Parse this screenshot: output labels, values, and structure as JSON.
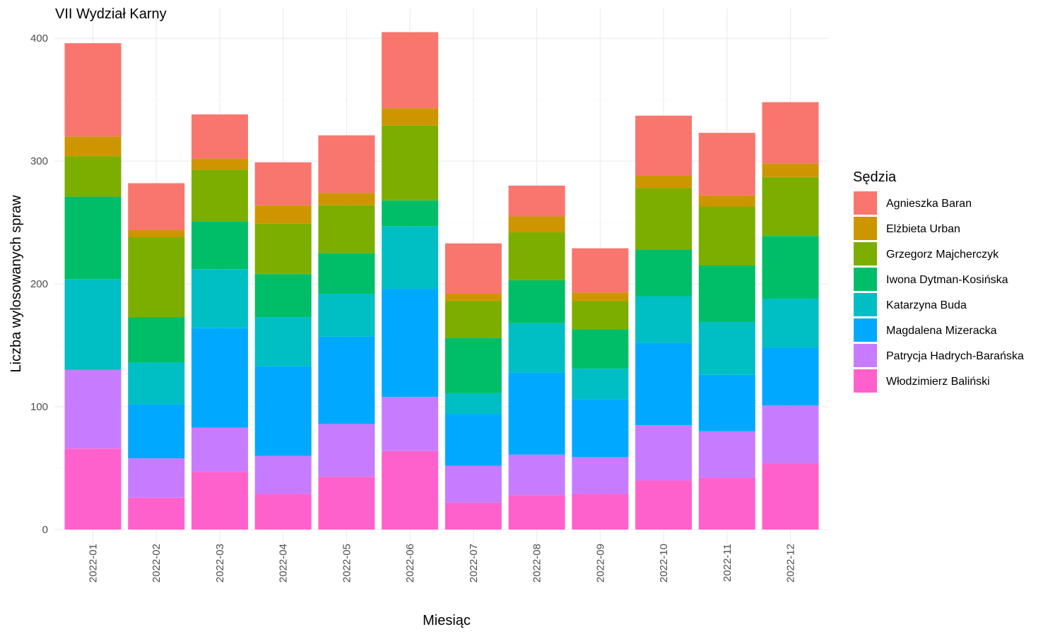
{
  "chart_data": {
    "type": "bar",
    "stacked": true,
    "title": "VII Wydział Karny",
    "xlabel": "Miesiąc",
    "ylabel": "Liczba wylosowanych spraw",
    "ylim": [
      0,
      420
    ],
    "yticks": [
      0,
      100,
      200,
      300,
      400
    ],
    "grid": true,
    "legend_title": "Sędzia",
    "legend_position": "right",
    "categories": [
      "2022-01",
      "2022-02",
      "2022-03",
      "2022-04",
      "2022-05",
      "2022-06",
      "2022-07",
      "2022-08",
      "2022-09",
      "2022-10",
      "2022-11",
      "2022-12"
    ],
    "series": [
      {
        "name": "Agnieszka Baran",
        "color": "#F8766D",
        "values": [
          76,
          38,
          36,
          35,
          47,
          62,
          41,
          25,
          36,
          49,
          51,
          50
        ]
      },
      {
        "name": "Elżbieta Urban",
        "color": "#CD9600",
        "values": [
          16,
          6,
          9,
          15,
          10,
          14,
          6,
          13,
          7,
          10,
          9,
          11
        ]
      },
      {
        "name": "Grzegorz Majcherczyk",
        "color": "#7CAE00",
        "values": [
          33,
          65,
          42,
          41,
          39,
          61,
          30,
          39,
          23,
          50,
          48,
          48
        ]
      },
      {
        "name": "Iwona Dytman-Kosińska",
        "color": "#00BE67",
        "values": [
          67,
          37,
          39,
          35,
          33,
          21,
          45,
          35,
          32,
          38,
          46,
          51
        ]
      },
      {
        "name": "Katarzyna Buda",
        "color": "#00BFC4",
        "values": [
          74,
          34,
          48,
          40,
          35,
          51,
          17,
          40,
          25,
          38,
          43,
          40
        ]
      },
      {
        "name": "Magdalena Mizeracka",
        "color": "#00A9FF",
        "values": [
          0,
          44,
          81,
          73,
          71,
          88,
          42,
          67,
          47,
          67,
          46,
          47
        ]
      },
      {
        "name": "Patrycja Hadrych-Barańska",
        "color": "#C77CFF",
        "values": [
          64,
          32,
          36,
          31,
          43,
          44,
          30,
          33,
          30,
          45,
          38,
          47
        ]
      },
      {
        "name": "Włodzimierz Baliński",
        "color": "#FF61CC",
        "values": [
          66,
          26,
          47,
          29,
          43,
          64,
          22,
          28,
          29,
          40,
          42,
          54
        ]
      }
    ]
  }
}
